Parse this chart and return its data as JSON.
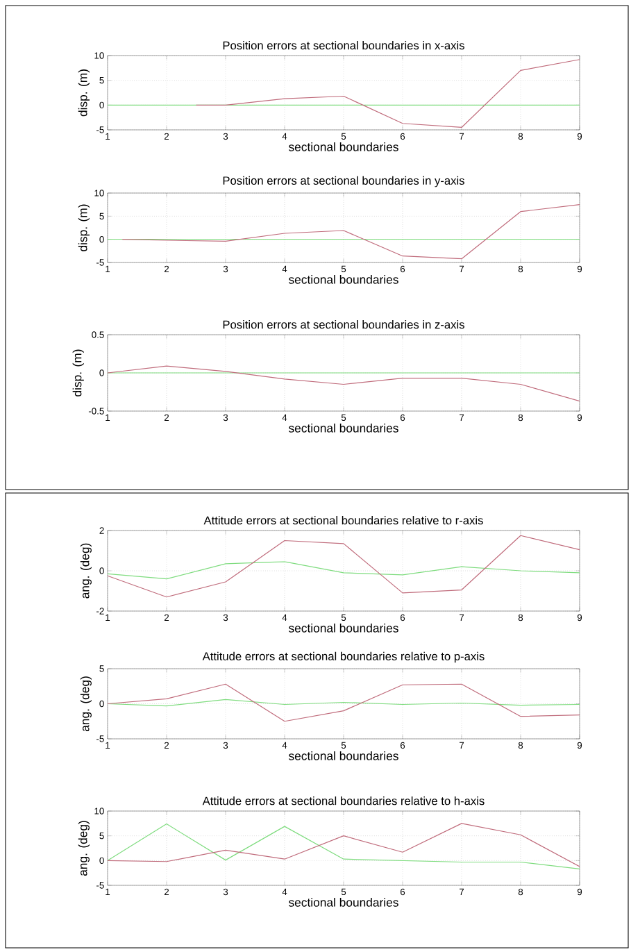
{
  "chart_data": [
    {
      "type": "line",
      "title": "Position errors at sectional boundaries in x-axis",
      "xlabel": "sectional boundaries",
      "ylabel": "disp. (m)",
      "x": [
        1,
        2,
        3,
        4,
        5,
        6,
        7,
        8,
        9
      ],
      "xlim": [
        1,
        9
      ],
      "xticks": [
        1,
        2,
        3,
        4,
        5,
        6,
        7,
        8,
        9
      ],
      "ylim": [
        -5,
        10
      ],
      "yticks": [
        -5,
        0,
        5,
        10
      ],
      "grid": true,
      "series": [
        {
          "color": "#7fdc7f",
          "values": [
            0,
            0,
            0,
            0,
            0,
            0,
            0,
            0,
            0
          ]
        },
        {
          "color": "#c06c7c",
          "x": [
            2.5,
            3,
            4,
            5,
            6,
            7,
            8,
            9
          ],
          "values": [
            0,
            0,
            1.3,
            1.8,
            -3.7,
            -4.5,
            7,
            9.2
          ]
        }
      ]
    },
    {
      "type": "line",
      "title": "Position errors at sectional boundaries in y-axis",
      "xlabel": "sectional boundaries",
      "ylabel": "disp. (m)",
      "x": [
        1,
        2,
        3,
        4,
        5,
        6,
        7,
        8,
        9
      ],
      "xlim": [
        1,
        9
      ],
      "xticks": [
        1,
        2,
        3,
        4,
        5,
        6,
        7,
        8,
        9
      ],
      "ylim": [
        -5,
        10
      ],
      "yticks": [
        -5,
        0,
        5,
        10
      ],
      "grid": true,
      "series": [
        {
          "color": "#7fdc7f",
          "values": [
            0,
            0,
            0,
            0,
            0,
            0,
            0,
            0,
            0
          ]
        },
        {
          "color": "#c06c7c",
          "x": [
            1.25,
            2,
            3,
            4,
            5,
            6,
            7,
            8,
            9
          ],
          "values": [
            0,
            -0.2,
            -0.4,
            1.3,
            1.9,
            -3.6,
            -4.2,
            6,
            7.5
          ]
        }
      ]
    },
    {
      "type": "line",
      "title": "Position errors at sectional boundaries in z-axis",
      "xlabel": "sectional boundaries",
      "ylabel": "disp. (m)",
      "x": [
        1,
        2,
        3,
        4,
        5,
        6,
        7,
        8,
        9
      ],
      "xlim": [
        1,
        9
      ],
      "xticks": [
        1,
        2,
        3,
        4,
        5,
        6,
        7,
        8,
        9
      ],
      "ylim": [
        -0.5,
        0.5
      ],
      "yticks": [
        -0.5,
        0,
        0.5
      ],
      "grid": true,
      "series": [
        {
          "color": "#7fdc7f",
          "values": [
            0,
            0,
            0,
            0,
            0,
            0,
            0,
            0,
            0
          ]
        },
        {
          "color": "#c06c7c",
          "values": [
            0,
            0.09,
            0.02,
            -0.08,
            -0.15,
            -0.07,
            -0.07,
            -0.15,
            -0.37
          ]
        }
      ]
    },
    {
      "type": "line",
      "title": "Attitude errors at sectional boundaries relative to r-axis",
      "xlabel": "sectional boundaries",
      "ylabel": "ang. (deg)",
      "x": [
        1,
        2,
        3,
        4,
        5,
        6,
        7,
        8,
        9
      ],
      "xlim": [
        1,
        9
      ],
      "xticks": [
        1,
        2,
        3,
        4,
        5,
        6,
        7,
        8,
        9
      ],
      "ylim": [
        -2,
        2
      ],
      "yticks": [
        -2,
        0,
        2
      ],
      "grid": true,
      "series": [
        {
          "color": "#7fdc7f",
          "values": [
            -0.15,
            -0.4,
            0.35,
            0.45,
            -0.1,
            -0.2,
            0.2,
            0,
            -0.1
          ]
        },
        {
          "color": "#c06c7c",
          "values": [
            -0.25,
            -1.3,
            -0.55,
            1.5,
            1.35,
            -1.1,
            -0.95,
            1.75,
            1.05
          ]
        }
      ]
    },
    {
      "type": "line",
      "title": "Attitude errors at sectional boundaries relative to p-axis",
      "xlabel": "sectional boundaries",
      "ylabel": "ang. (deg)",
      "x": [
        1,
        2,
        3,
        4,
        5,
        6,
        7,
        8,
        9
      ],
      "xlim": [
        1,
        9
      ],
      "xticks": [
        1,
        2,
        3,
        4,
        5,
        6,
        7,
        8,
        9
      ],
      "ylim": [
        -5,
        5
      ],
      "yticks": [
        -5,
        0,
        5
      ],
      "grid": true,
      "series": [
        {
          "color": "#7fdc7f",
          "values": [
            0,
            -0.3,
            0.6,
            -0.1,
            0.2,
            -0.1,
            0.1,
            -0.2,
            -0.1
          ]
        },
        {
          "color": "#c06c7c",
          "values": [
            0,
            0.7,
            2.8,
            -2.5,
            -1,
            2.7,
            2.8,
            -1.8,
            -1.6
          ]
        }
      ]
    },
    {
      "type": "line",
      "title": "Attitude errors at sectional boundaries relative to h-axis",
      "xlabel": "sectional boundaries",
      "ylabel": "ang. (deg)",
      "x": [
        1,
        2,
        3,
        4,
        5,
        6,
        7,
        8,
        9
      ],
      "xlim": [
        1,
        9
      ],
      "xticks": [
        1,
        2,
        3,
        4,
        5,
        6,
        7,
        8,
        9
      ],
      "ylim": [
        -5,
        10
      ],
      "yticks": [
        -5,
        0,
        5,
        10
      ],
      "grid": true,
      "series": [
        {
          "color": "#7fdc7f",
          "values": [
            0,
            7.4,
            0.1,
            6.9,
            0.3,
            0,
            -0.3,
            -0.3,
            -1.7
          ]
        },
        {
          "color": "#c06c7c",
          "values": [
            0,
            -0.2,
            2.1,
            0.3,
            5,
            1.7,
            7.5,
            5.2,
            -1.2
          ]
        }
      ]
    }
  ]
}
